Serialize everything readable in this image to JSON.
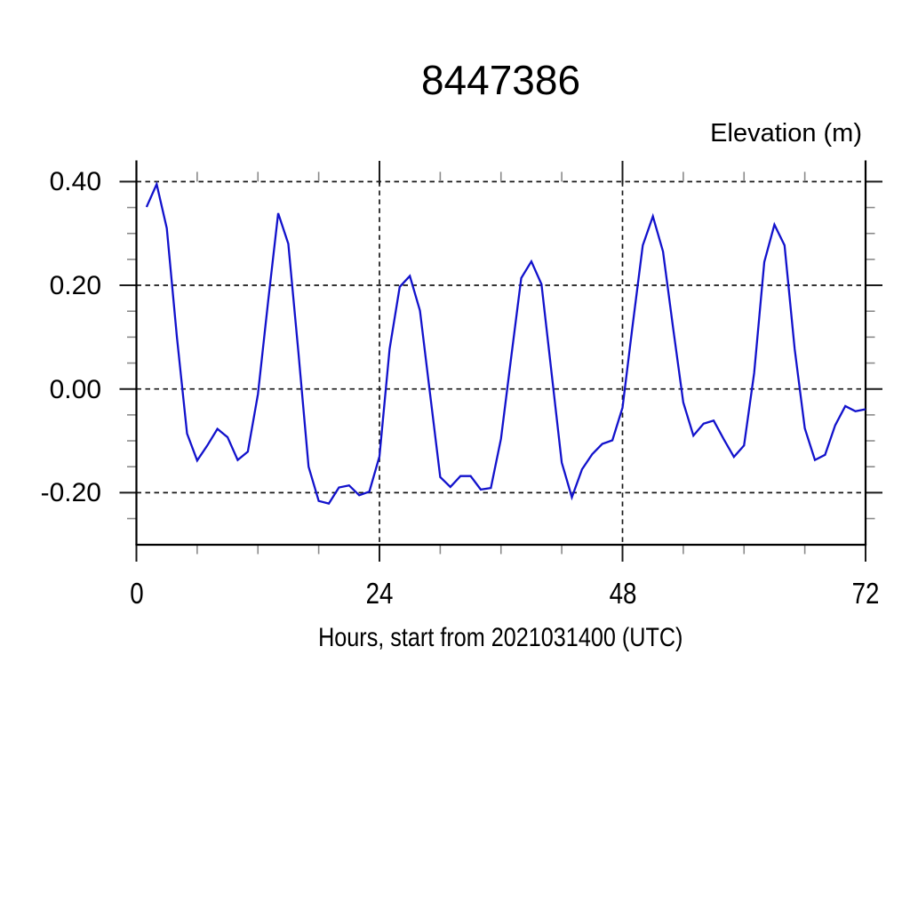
{
  "title": "8447386",
  "y_axis_title": "Elevation (m)",
  "x_axis_label": "Hours, start from 2021031400 (UTC)",
  "line_color": "#1212cc",
  "chart_data": {
    "type": "line",
    "title": "8447386",
    "xlabel": "Hours, start from 2021031400 (UTC)",
    "ylabel": "Elevation (m)",
    "xlim": [
      0,
      72
    ],
    "ylim": [
      -0.3,
      0.4
    ],
    "grid": "dashed",
    "legend": "none",
    "x_start_hour": 1,
    "x_step_hours": 1,
    "x": [
      1,
      2,
      3,
      4,
      5,
      6,
      7,
      8,
      9,
      10,
      11,
      12,
      13,
      14,
      15,
      16,
      17,
      18,
      19,
      20,
      21,
      22,
      23,
      24,
      25,
      26,
      27,
      28,
      29,
      30,
      31,
      32,
      33,
      34,
      35,
      36,
      37,
      38,
      39,
      40,
      41,
      42,
      43,
      44,
      45,
      46,
      47,
      48,
      49,
      50,
      51,
      52,
      53,
      54,
      55,
      56,
      57,
      58,
      59,
      60,
      61,
      62,
      63,
      64,
      65,
      66,
      67,
      68,
      69,
      70,
      71,
      72
    ],
    "values": [
      0.351,
      0.395,
      0.31,
      0.1,
      -0.086,
      -0.138,
      -0.109,
      -0.077,
      -0.093,
      -0.137,
      -0.121,
      -0.01,
      0.168,
      0.339,
      0.28,
      0.07,
      -0.15,
      -0.216,
      -0.221,
      -0.19,
      -0.186,
      -0.205,
      -0.198,
      -0.13,
      0.077,
      0.197,
      0.218,
      0.151,
      -0.01,
      -0.17,
      -0.189,
      -0.168,
      -0.168,
      -0.194,
      -0.191,
      -0.096,
      0.06,
      0.214,
      0.246,
      0.202,
      0.03,
      -0.142,
      -0.209,
      -0.155,
      -0.126,
      -0.106,
      -0.099,
      -0.036,
      0.123,
      0.277,
      0.333,
      0.265,
      0.117,
      -0.026,
      -0.09,
      -0.067,
      -0.061,
      -0.097,
      -0.131,
      -0.109,
      0.031,
      0.245,
      0.317,
      0.277,
      0.077,
      -0.076,
      -0.137,
      -0.127,
      -0.07,
      -0.033,
      -0.043,
      -0.039
    ],
    "x_major_ticks": [
      0,
      24,
      48,
      72
    ],
    "x_major_tick_labels": [
      "0",
      "24",
      "48",
      "72"
    ],
    "x_minor_ticks": [
      6,
      12,
      18,
      30,
      36,
      42,
      54,
      60,
      66
    ],
    "y_major_ticks": [
      0.4,
      0.2,
      0.0,
      -0.2
    ],
    "y_major_tick_labels": [
      "0.40",
      "0.20",
      "0.00",
      "-0.20"
    ],
    "y_minor_ticks": [
      0.35,
      0.3,
      0.25,
      0.15,
      0.1,
      0.05,
      -0.05,
      -0.1,
      -0.15,
      -0.25
    ],
    "grid_x": [
      24,
      48
    ],
    "grid_y": [
      0.4,
      0.2,
      0.0,
      -0.2
    ]
  }
}
